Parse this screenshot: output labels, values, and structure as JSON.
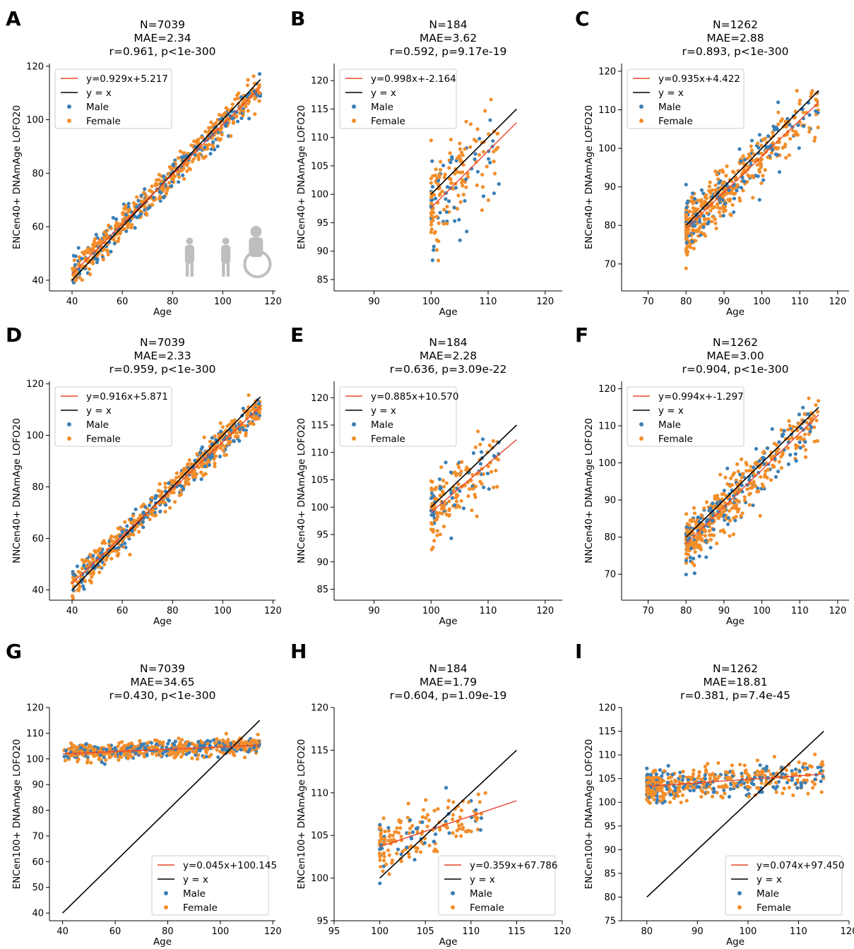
{
  "chart_data": [
    {
      "id": "A",
      "letter": "A",
      "type": "scatter",
      "title": [
        "N=7039",
        "MAE=2.34",
        "r=0.961, p<1e-300"
      ],
      "xlabel": "Age",
      "ylabel": "ENCen40+ DNAmAge LOFO20",
      "xlim": [
        31,
        121
      ],
      "ylim": [
        36,
        121
      ],
      "xticks": [
        40,
        60,
        80,
        100,
        120
      ],
      "yticks": [
        40,
        60,
        80,
        100,
        120
      ],
      "fit": {
        "slope": 0.929,
        "intercept": 5.217
      },
      "identity": true,
      "fit_range": [
        40,
        115
      ],
      "legend": [
        "y=0.929x+5.217",
        "y = x",
        "Male",
        "Female"
      ],
      "legend_loc": "upper-left",
      "series": [
        {
          "name": "Male",
          "color": "#3b7fb6"
        },
        {
          "name": "Female",
          "color": "#f28e2b"
        }
      ],
      "scatter_model": {
        "x_range": [
          40,
          115
        ],
        "x_dist": "uniform",
        "noise_sd": 2.8,
        "n_points": 650,
        "male_fraction": 0.32
      }
    },
    {
      "id": "B",
      "letter": "B",
      "type": "scatter",
      "title": [
        "N=184",
        "MAE=3.62",
        "r=0.592, p=9.17e-19"
      ],
      "xlabel": "Age",
      "ylabel": "ENCen40+ DNAmAge LOFO20",
      "xlim": [
        83,
        123
      ],
      "ylim": [
        83,
        123
      ],
      "xticks": [
        90,
        100,
        110,
        120
      ],
      "yticks": [
        85,
        90,
        95,
        100,
        105,
        110,
        115,
        120
      ],
      "fit": {
        "slope": 0.998,
        "intercept": -2.164
      },
      "identity": true,
      "fit_range": [
        100,
        115
      ],
      "legend": [
        "y=0.998x+-2.164",
        "y = x",
        "Male",
        "Female"
      ],
      "legend_loc": "upper-left",
      "series": [
        {
          "name": "Male",
          "color": "#3b7fb6"
        },
        {
          "name": "Female",
          "color": "#f28e2b"
        }
      ],
      "scatter_model": {
        "x_range": [
          100,
          112
        ],
        "x_dist": "skew",
        "noise_sd": 4.0,
        "n_points": 184,
        "male_fraction": 0.25
      }
    },
    {
      "id": "C",
      "letter": "C",
      "type": "scatter",
      "title": [
        "N=1262",
        "MAE=2.88",
        "r=0.893, p<1e-300"
      ],
      "xlabel": "Age",
      "ylabel": "ENCen40+ DNAmAge LOFO20",
      "xlim": [
        63,
        123
      ],
      "ylim": [
        63,
        122
      ],
      "xticks": [
        70,
        80,
        90,
        100,
        110,
        120
      ],
      "yticks": [
        70,
        80,
        90,
        100,
        110,
        120
      ],
      "fit": {
        "slope": 0.935,
        "intercept": 4.422
      },
      "identity": true,
      "fit_range": [
        80,
        115
      ],
      "legend": [
        "y=0.935x+4.422",
        "y = x",
        "Male",
        "Female"
      ],
      "legend_loc": "upper-left",
      "series": [
        {
          "name": "Male",
          "color": "#3b7fb6"
        },
        {
          "name": "Female",
          "color": "#f28e2b"
        }
      ],
      "scatter_model": {
        "x_range": [
          80,
          115
        ],
        "x_dist": "skew",
        "noise_sd": 3.5,
        "n_points": 520,
        "male_fraction": 0.3
      }
    },
    {
      "id": "D",
      "letter": "D",
      "type": "scatter",
      "title": [
        "N=7039",
        "MAE=2.33",
        "r=0.959, p<1e-300"
      ],
      "xlabel": "Age",
      "ylabel": "NNCen40+ DNAmAge LOFO20",
      "xlim": [
        31,
        121
      ],
      "ylim": [
        36,
        121
      ],
      "xticks": [
        40,
        60,
        80,
        100,
        120
      ],
      "yticks": [
        40,
        60,
        80,
        100,
        120
      ],
      "fit": {
        "slope": 0.916,
        "intercept": 5.871
      },
      "identity": true,
      "fit_range": [
        40,
        115
      ],
      "legend": [
        "y=0.916x+5.871",
        "y = x",
        "Male",
        "Female"
      ],
      "legend_loc": "upper-left",
      "series": [
        {
          "name": "Male",
          "color": "#3b7fb6"
        },
        {
          "name": "Female",
          "color": "#f28e2b"
        }
      ],
      "scatter_model": {
        "x_range": [
          40,
          115
        ],
        "x_dist": "uniform",
        "noise_sd": 2.8,
        "n_points": 650,
        "male_fraction": 0.32
      }
    },
    {
      "id": "E",
      "letter": "E",
      "type": "scatter",
      "title": [
        "N=184",
        "MAE=2.28",
        "r=0.636, p=3.09e-22"
      ],
      "xlabel": "Age",
      "ylabel": "NNCen40+ DNAmAge LOFO20",
      "xlim": [
        83,
        123
      ],
      "ylim": [
        83,
        123
      ],
      "xticks": [
        90,
        100,
        110,
        120
      ],
      "yticks": [
        85,
        90,
        95,
        100,
        105,
        110,
        115,
        120
      ],
      "fit": {
        "slope": 0.885,
        "intercept": 10.57
      },
      "identity": true,
      "fit_range": [
        100,
        115
      ],
      "legend": [
        "y=0.885x+10.570",
        "y = x",
        "Male",
        "Female"
      ],
      "legend_loc": "upper-left",
      "series": [
        {
          "name": "Male",
          "color": "#3b7fb6"
        },
        {
          "name": "Female",
          "color": "#f28e2b"
        }
      ],
      "scatter_model": {
        "x_range": [
          100,
          112
        ],
        "x_dist": "skew",
        "noise_sd": 3.0,
        "n_points": 184,
        "male_fraction": 0.25
      }
    },
    {
      "id": "F",
      "letter": "F",
      "type": "scatter",
      "title": [
        "N=1262",
        "MAE=3.00",
        "r=0.904, p<1e-300"
      ],
      "xlabel": "Age",
      "ylabel": "NNCen40+ DNAmAge LOFO20",
      "xlim": [
        63,
        123
      ],
      "ylim": [
        63,
        122
      ],
      "xticks": [
        70,
        80,
        90,
        100,
        110,
        120
      ],
      "yticks": [
        70,
        80,
        90,
        100,
        110,
        120
      ],
      "fit": {
        "slope": 0.994,
        "intercept": -1.297
      },
      "identity": true,
      "fit_range": [
        80,
        115
      ],
      "legend": [
        "y=0.994x+-1.297",
        "y = x",
        "Male",
        "Female"
      ],
      "legend_loc": "upper-left",
      "series": [
        {
          "name": "Male",
          "color": "#3b7fb6"
        },
        {
          "name": "Female",
          "color": "#f28e2b"
        }
      ],
      "scatter_model": {
        "x_range": [
          80,
          115
        ],
        "x_dist": "skew",
        "noise_sd": 3.5,
        "n_points": 520,
        "male_fraction": 0.3
      }
    },
    {
      "id": "G",
      "letter": "G",
      "type": "scatter",
      "title": [
        "N=7039",
        "MAE=34.65",
        "r=0.430, p<1e-300"
      ],
      "xlabel": "Age",
      "ylabel": "ENCen100+ DNAmAge LOFO20",
      "xlim": [
        35,
        121
      ],
      "ylim": [
        37,
        120
      ],
      "xticks": [
        40,
        60,
        80,
        100,
        120
      ],
      "yticks": [
        40,
        50,
        60,
        70,
        80,
        90,
        100,
        110,
        120
      ],
      "fit": {
        "slope": 0.045,
        "intercept": 100.145
      },
      "identity": true,
      "fit_range": [
        40,
        115
      ],
      "legend": [
        "y=0.045x+100.145",
        "y = x",
        "Male",
        "Female"
      ],
      "legend_loc": "lower-right",
      "series": [
        {
          "name": "Male",
          "color": "#3b7fb6"
        },
        {
          "name": "Female",
          "color": "#f28e2b"
        }
      ],
      "scatter_model": {
        "x_range": [
          40,
          115
        ],
        "x_dist": "uniform",
        "noise_sd": 1.6,
        "n_points": 650,
        "male_fraction": 0.32
      }
    },
    {
      "id": "H",
      "letter": "H",
      "type": "scatter",
      "title": [
        "N=184",
        "MAE=1.79",
        "r=0.604, p=1.09e-19"
      ],
      "xlabel": "Age",
      "ylabel": "ENCen100+ DNAmAge LOFO20",
      "xlim": [
        95,
        120
      ],
      "ylim": [
        95,
        120
      ],
      "xticks": [
        95,
        100,
        105,
        110,
        115,
        120
      ],
      "yticks": [
        95,
        100,
        105,
        110,
        115,
        120
      ],
      "fit": {
        "slope": 0.359,
        "intercept": 67.786
      },
      "identity": true,
      "fit_range": [
        100,
        115
      ],
      "legend": [
        "y=0.359x+67.786",
        "y = x",
        "Male",
        "Female"
      ],
      "legend_loc": "lower-right",
      "series": [
        {
          "name": "Male",
          "color": "#3b7fb6"
        },
        {
          "name": "Female",
          "color": "#f28e2b"
        }
      ],
      "scatter_model": {
        "x_range": [
          100,
          112
        ],
        "x_dist": "skew",
        "noise_sd": 1.6,
        "n_points": 184,
        "male_fraction": 0.25
      }
    },
    {
      "id": "I",
      "letter": "I",
      "type": "scatter",
      "title": [
        "N=1262",
        "MAE=18.81",
        "r=0.381, p=7.4e-45"
      ],
      "xlabel": "Age",
      "ylabel": "ENCen100+ DNAmAge LOFO20",
      "xlim": [
        75,
        120
      ],
      "ylim": [
        75,
        120
      ],
      "xticks": [
        80,
        90,
        100,
        110,
        120
      ],
      "yticks": [
        75,
        80,
        85,
        90,
        95,
        100,
        105,
        110,
        115,
        120
      ],
      "fit": {
        "slope": 0.074,
        "intercept": 97.45
      },
      "identity": true,
      "fit_range": [
        80,
        115
      ],
      "legend": [
        "y=0.074x+97.450",
        "y = x",
        "Male",
        "Female"
      ],
      "legend_loc": "lower-right",
      "series": [
        {
          "name": "Male",
          "color": "#3b7fb6"
        },
        {
          "name": "Female",
          "color": "#f28e2b"
        }
      ],
      "scatter_model": {
        "x_range": [
          80,
          115
        ],
        "x_dist": "skew",
        "noise_sd": 1.7,
        "n_points": 520,
        "male_fraction": 0.3
      }
    }
  ],
  "colors": {
    "fit_line": "#e8452c",
    "identity_line": "#000000",
    "male": "#3b7fb6",
    "female": "#f28e2b",
    "silhouette": "#b3b3b3"
  }
}
